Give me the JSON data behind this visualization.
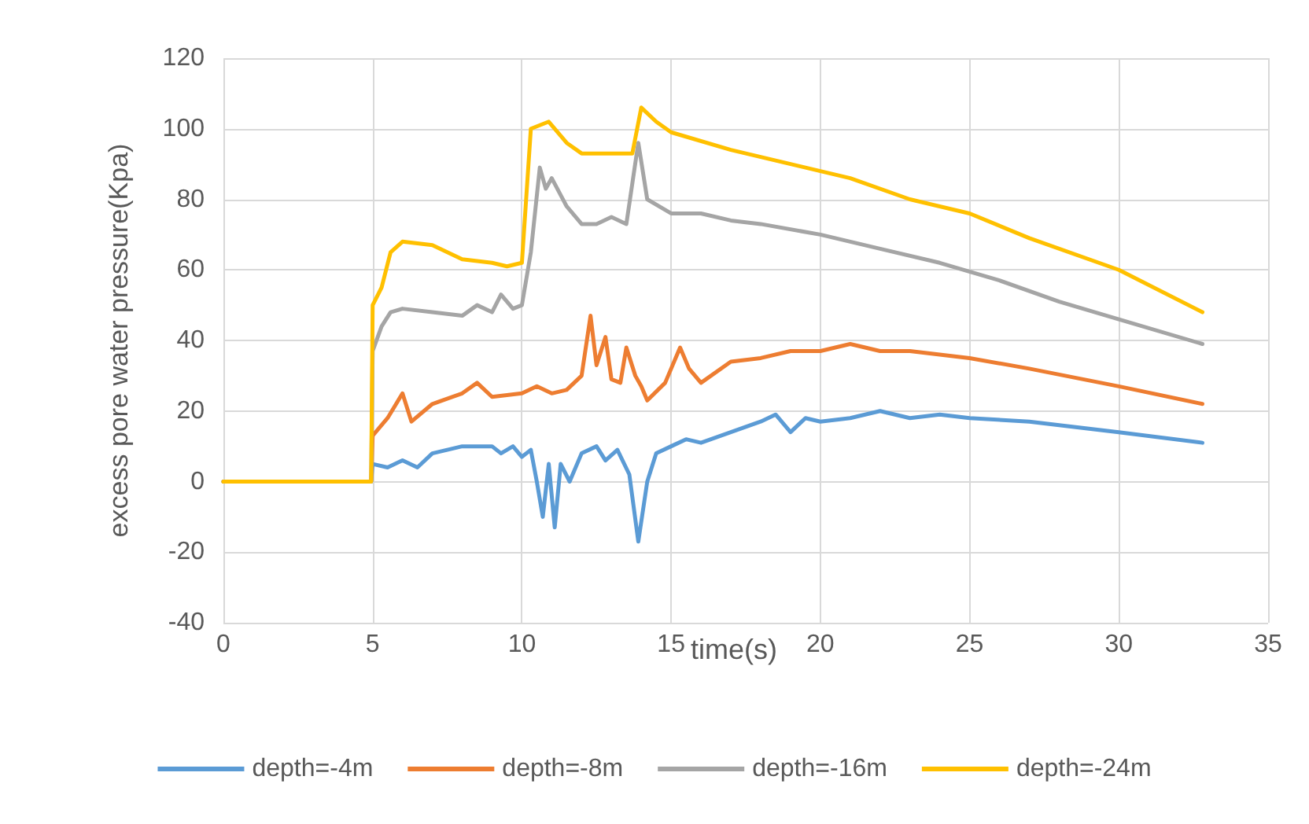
{
  "chart_data": {
    "type": "line",
    "xlabel": "time(s)",
    "ylabel": "excess pore water pressure(Kpa)",
    "xlim": [
      0,
      35
    ],
    "xticks": [
      0,
      5,
      10,
      15,
      20,
      25,
      30,
      35
    ],
    "ylim": [
      -40,
      120
    ],
    "yticks": [
      -40,
      -20,
      0,
      20,
      40,
      60,
      80,
      100,
      120
    ],
    "grid": true,
    "legend": "bottom",
    "marker": "none",
    "line_style": "solid",
    "series": [
      {
        "name": "depth=-4m",
        "color": "#5b9bd5",
        "x": [
          0,
          4.95,
          5.0,
          5.5,
          6,
          6.5,
          7,
          8,
          9,
          9.3,
          9.7,
          10,
          10.3,
          10.5,
          10.7,
          10.9,
          11.1,
          11.3,
          11.6,
          12,
          12.5,
          12.8,
          13.2,
          13.6,
          13.9,
          14.2,
          14.5,
          15,
          15.5,
          16,
          17,
          18,
          18.5,
          19,
          19.5,
          20,
          21,
          22,
          23,
          24,
          25,
          27,
          30,
          32.8
        ],
        "values": [
          0,
          0,
          5,
          4,
          6,
          4,
          8,
          10,
          10,
          8,
          10,
          7,
          9,
          0,
          -10,
          5,
          -13,
          5,
          0,
          8,
          10,
          6,
          9,
          2,
          -17,
          0,
          8,
          10,
          12,
          11,
          14,
          17,
          19,
          14,
          18,
          17,
          18,
          20,
          18,
          19,
          18,
          17,
          14,
          11
        ]
      },
      {
        "name": "depth=-8m",
        "color": "#ed7d31",
        "x": [
          0,
          4.95,
          5.0,
          5.5,
          6,
          6.3,
          7,
          8,
          8.5,
          9,
          10,
          10.5,
          11,
          11.5,
          12,
          12.3,
          12.5,
          12.8,
          13,
          13.3,
          13.5,
          13.8,
          14,
          14.2,
          14.8,
          15.3,
          15.6,
          16,
          17,
          18,
          19,
          20,
          21,
          22,
          23,
          25,
          27,
          30,
          32.8
        ],
        "values": [
          0,
          0,
          13,
          18,
          25,
          17,
          22,
          25,
          28,
          24,
          25,
          27,
          25,
          26,
          30,
          47,
          33,
          41,
          29,
          28,
          38,
          30,
          27,
          23,
          28,
          38,
          32,
          28,
          34,
          35,
          37,
          37,
          39,
          37,
          37,
          35,
          32,
          27,
          22
        ]
      },
      {
        "name": "depth=-16m",
        "color": "#a5a5a5",
        "x": [
          0,
          4.95,
          5.0,
          5.3,
          5.6,
          6,
          7,
          8,
          8.5,
          9,
          9.3,
          9.7,
          10,
          10.3,
          10.6,
          10.8,
          11,
          11.5,
          12,
          12.5,
          13,
          13.5,
          13.9,
          14.2,
          15,
          16,
          17,
          18,
          20,
          22,
          24,
          26,
          28,
          30,
          32.8
        ],
        "values": [
          0,
          0,
          37,
          44,
          48,
          49,
          48,
          47,
          50,
          48,
          53,
          49,
          50,
          65,
          89,
          83,
          86,
          78,
          73,
          73,
          75,
          73,
          96,
          80,
          76,
          76,
          74,
          73,
          70,
          66,
          62,
          57,
          51,
          46,
          39
        ]
      },
      {
        "name": "depth=-24m",
        "color": "#ffc000",
        "x": [
          0,
          4.95,
          5.0,
          5.3,
          5.6,
          6,
          7,
          8,
          9,
          9.5,
          10,
          10.3,
          10.6,
          10.9,
          11.5,
          12,
          13,
          13.7,
          14,
          14.5,
          15,
          17,
          19,
          21,
          23,
          25,
          27,
          30,
          32.8
        ],
        "values": [
          0,
          0,
          50,
          55,
          65,
          68,
          67,
          63,
          62,
          61,
          62,
          100,
          101,
          102,
          96,
          93,
          93,
          93,
          106,
          102,
          99,
          94,
          90,
          86,
          80,
          76,
          69,
          60,
          48
        ]
      }
    ]
  }
}
